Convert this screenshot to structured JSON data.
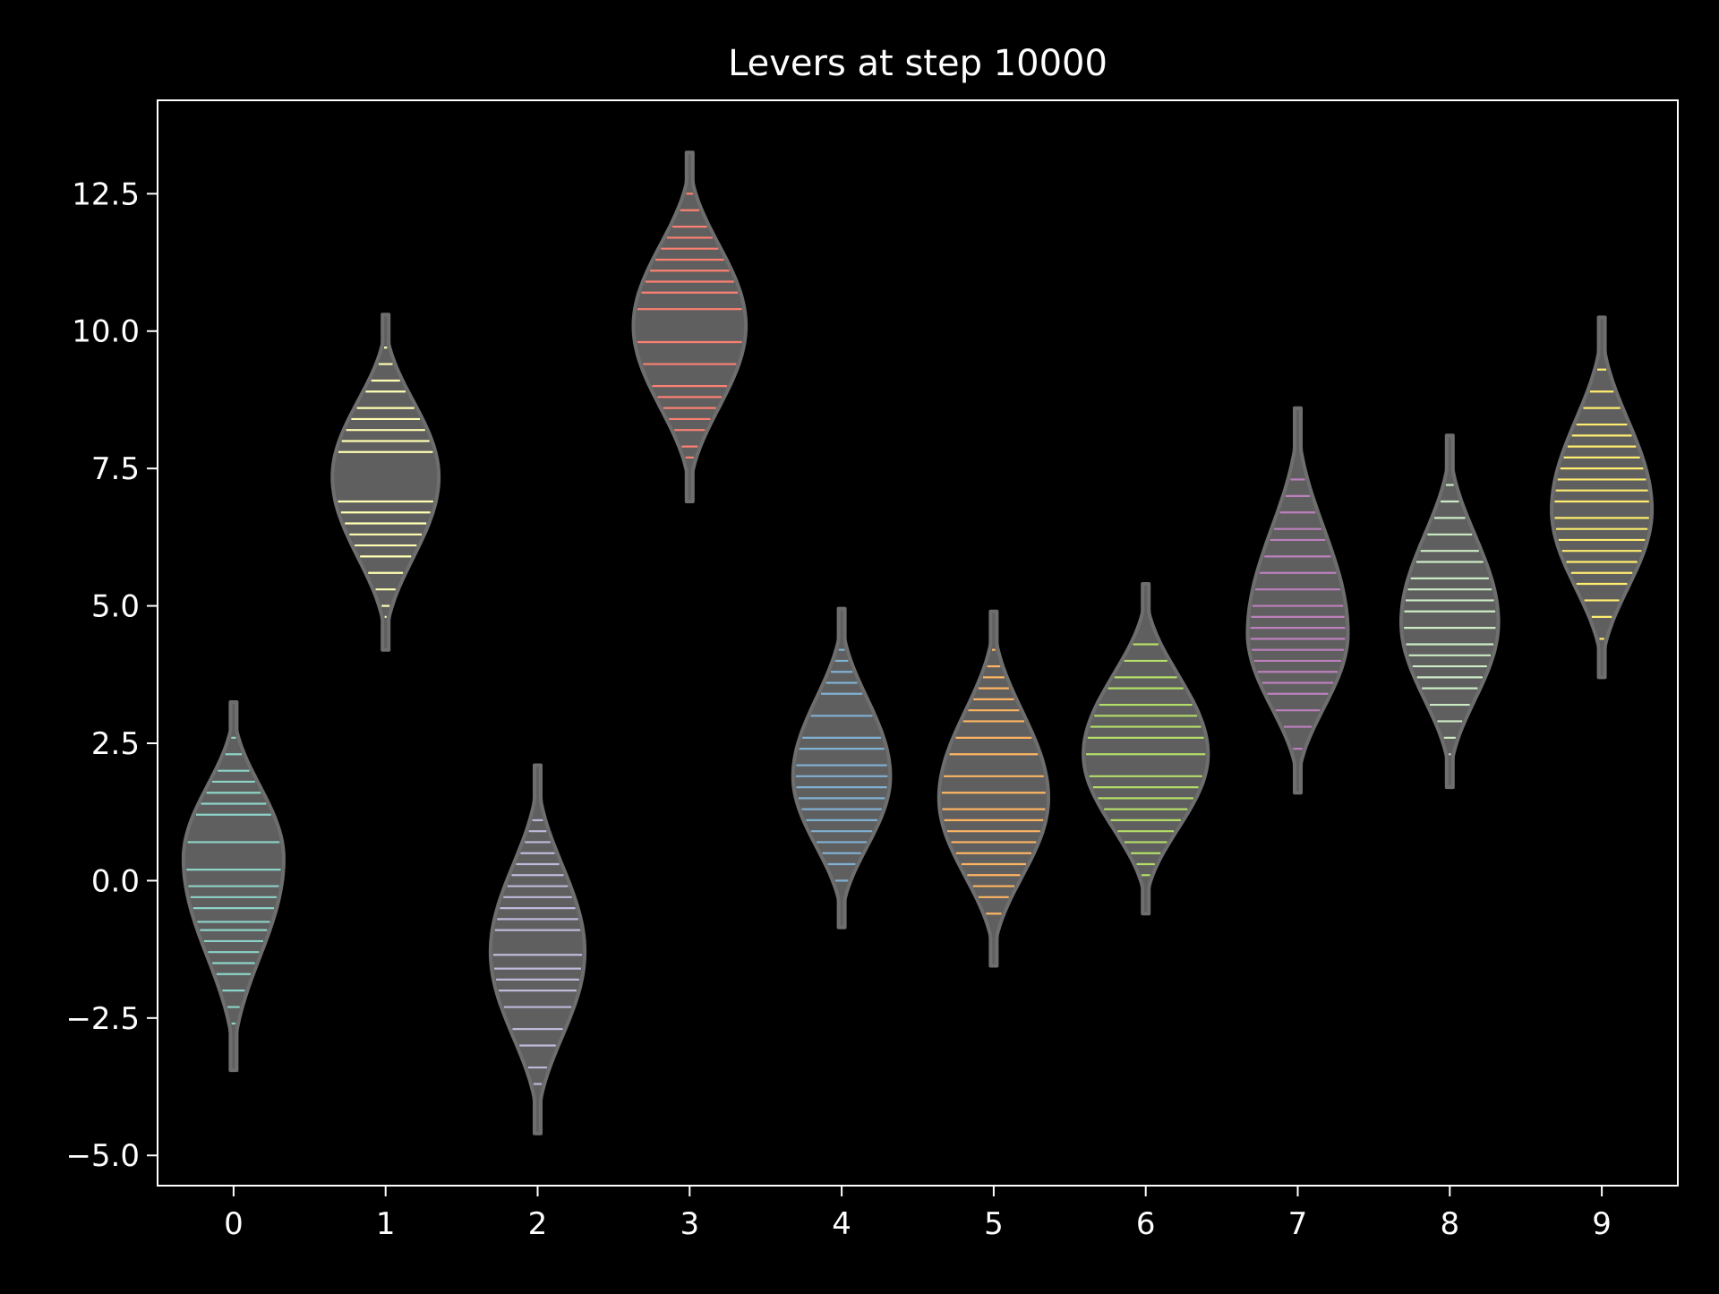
{
  "chart_data": {
    "type": "violin",
    "title": "Levers at step 10000",
    "xlabel": "",
    "ylabel": "",
    "categories": [
      "0",
      "1",
      "2",
      "3",
      "4",
      "5",
      "6",
      "7",
      "8",
      "9"
    ],
    "xticks": [
      "0",
      "1",
      "2",
      "3",
      "4",
      "5",
      "6",
      "7",
      "8",
      "9"
    ],
    "yticks": [
      -5.0,
      -2.5,
      0.0,
      2.5,
      5.0,
      7.5,
      10.0,
      12.5
    ],
    "ytick_labels": [
      "−5.0",
      "−2.5",
      "0.0",
      "2.5",
      "5.0",
      "7.5",
      "10.0",
      "12.5"
    ],
    "ylim": [
      -5.55,
      14.2
    ],
    "xlim": [
      -0.5,
      9.5
    ],
    "grid": false,
    "colors": {
      "background": "#000000",
      "axes": "#ffffff",
      "violin_fill": "#5f5f5f",
      "violin_edge": "#6e6e6e"
    },
    "series": [
      {
        "category": "0",
        "mode": 0.4,
        "min": -3.45,
        "max": 3.25,
        "peak_halfwidth": 0.33,
        "color": "#8dd3c7",
        "points": [
          -2.6,
          -2.3,
          -2.0,
          -1.7,
          -1.5,
          -1.3,
          -1.1,
          -0.9,
          -0.75,
          -0.5,
          -0.3,
          -0.1,
          0.2,
          0.7,
          1.2,
          1.4,
          1.6,
          1.8,
          2.0,
          2.3,
          2.6
        ]
      },
      {
        "category": "1",
        "mode": 7.35,
        "min": 4.2,
        "max": 10.3,
        "peak_halfwidth": 0.35,
        "color": "#ffffb3",
        "points": [
          4.8,
          5.0,
          5.3,
          5.6,
          5.9,
          6.1,
          6.3,
          6.5,
          6.7,
          6.9,
          7.8,
          8.0,
          8.2,
          8.4,
          8.6,
          8.9,
          9.1,
          9.4,
          9.7
        ]
      },
      {
        "category": "2",
        "mode": -1.3,
        "min": -4.6,
        "max": 2.1,
        "peak_halfwidth": 0.31,
        "color": "#bebada",
        "points": [
          -3.7,
          -3.4,
          -3.0,
          -2.7,
          -2.3,
          -2.0,
          -1.8,
          -1.6,
          -1.35,
          -0.9,
          -0.7,
          -0.5,
          -0.3,
          -0.1,
          0.1,
          0.3,
          0.5,
          0.7,
          0.9,
          1.1
        ]
      },
      {
        "category": "3",
        "mode": 10.1,
        "min": 6.9,
        "max": 13.25,
        "peak_halfwidth": 0.37,
        "color": "#fb8072",
        "points": [
          7.7,
          7.9,
          8.2,
          8.4,
          8.6,
          8.8,
          9.0,
          9.4,
          9.8,
          10.4,
          10.7,
          10.9,
          11.1,
          11.3,
          11.5,
          11.7,
          11.9,
          12.2,
          12.5
        ]
      },
      {
        "category": "4",
        "mode": 1.9,
        "min": -0.85,
        "max": 4.95,
        "peak_halfwidth": 0.32,
        "color": "#80b1d3",
        "points": [
          0.0,
          0.3,
          0.5,
          0.7,
          0.9,
          1.1,
          1.3,
          1.5,
          1.7,
          1.9,
          2.1,
          2.4,
          2.6,
          3.0,
          3.4,
          3.6,
          3.8,
          4.0,
          4.2
        ]
      },
      {
        "category": "5",
        "mode": 1.5,
        "min": -1.55,
        "max": 4.9,
        "peak_halfwidth": 0.36,
        "color": "#fdb462",
        "points": [
          -0.6,
          -0.3,
          -0.1,
          0.1,
          0.3,
          0.5,
          0.7,
          0.9,
          1.1,
          1.3,
          1.6,
          1.9,
          2.3,
          2.6,
          2.9,
          3.1,
          3.3,
          3.5,
          3.7,
          3.9,
          4.2
        ]
      },
      {
        "category": "6",
        "mode": 2.3,
        "min": -0.6,
        "max": 5.4,
        "peak_halfwidth": 0.41,
        "color": "#b3de69",
        "points": [
          0.1,
          0.3,
          0.5,
          0.7,
          0.9,
          1.1,
          1.3,
          1.5,
          1.7,
          1.9,
          2.3,
          2.6,
          2.8,
          3.0,
          3.2,
          3.5,
          3.7,
          4.0,
          4.3
        ]
      },
      {
        "category": "7",
        "mode": 4.5,
        "min": 1.6,
        "max": 8.6,
        "peak_halfwidth": 0.33,
        "color": "#bc80bd",
        "points": [
          2.4,
          2.8,
          3.1,
          3.4,
          3.6,
          3.8,
          4.0,
          4.2,
          4.4,
          4.6,
          4.8,
          5.0,
          5.3,
          5.6,
          5.9,
          6.2,
          6.4,
          6.7,
          7.0,
          7.3
        ]
      },
      {
        "category": "8",
        "mode": 4.7,
        "min": 1.7,
        "max": 8.1,
        "peak_halfwidth": 0.32,
        "color": "#ccebc5",
        "points": [
          2.3,
          2.6,
          2.9,
          3.2,
          3.5,
          3.7,
          3.9,
          4.1,
          4.3,
          4.6,
          4.9,
          5.1,
          5.3,
          5.5,
          5.8,
          6.0,
          6.3,
          6.6,
          6.9,
          7.2
        ]
      },
      {
        "category": "9",
        "mode": 6.75,
        "min": 3.7,
        "max": 10.25,
        "peak_halfwidth": 0.33,
        "color": "#ffed6f",
        "points": [
          4.4,
          4.8,
          5.1,
          5.4,
          5.6,
          5.8,
          6.0,
          6.2,
          6.4,
          6.6,
          6.9,
          7.1,
          7.3,
          7.5,
          7.7,
          7.9,
          8.1,
          8.3,
          8.6,
          8.9,
          9.3
        ]
      }
    ]
  }
}
